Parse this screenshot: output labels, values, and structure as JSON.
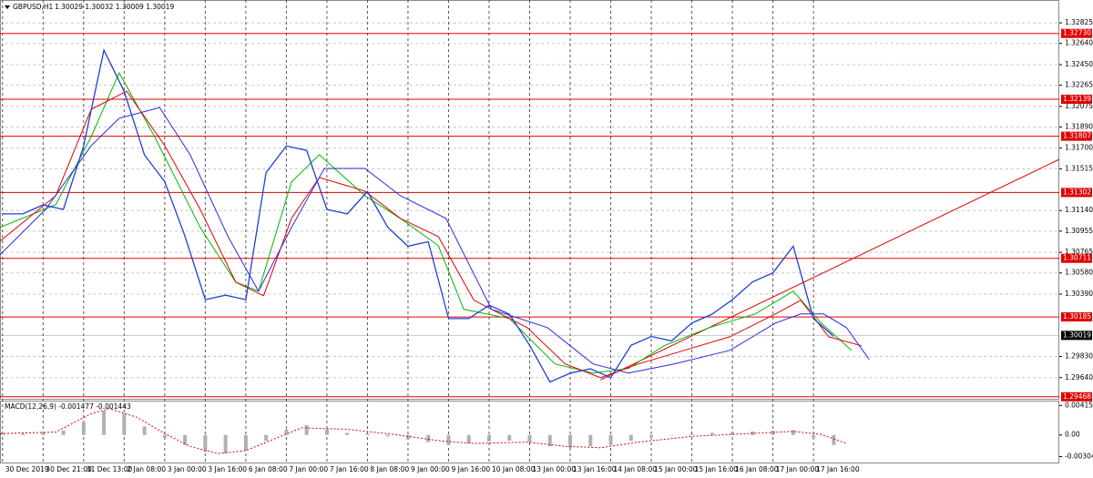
{
  "chart_data": {
    "type": "price",
    "title": "GBPUSD,H1",
    "ohlc_label": "1.30029 1.30032 1.30009 1.30019",
    "xlim": [
      -1,
      417
    ],
    "xticks": [
      {
        "value": 0,
        "label": "30 Dec 2019"
      },
      {
        "value": 16,
        "label": "30 Dec 21:00"
      },
      {
        "value": 32,
        "label": "31 Dec 13:00"
      },
      {
        "value": 48,
        "label": "2 Jan 08:00"
      },
      {
        "value": 64,
        "label": "3 Jan 00:00"
      },
      {
        "value": 80,
        "label": "3 Jan 16:00"
      },
      {
        "value": 96,
        "label": "6 Jan 08:00"
      },
      {
        "value": 112,
        "label": "7 Jan 00:00"
      },
      {
        "value": 128,
        "label": "7 Jan 16:00"
      },
      {
        "value": 144,
        "label": "8 Jan 08:00"
      },
      {
        "value": 160,
        "label": "9 Jan 00:00"
      },
      {
        "value": 176,
        "label": "9 Jan 16:00"
      },
      {
        "value": 192,
        "label": "10 Jan 08:00"
      },
      {
        "value": 208,
        "label": "13 Jan 00:00"
      },
      {
        "value": 224,
        "label": "13 Jan 16:00"
      },
      {
        "value": 240,
        "label": "14 Jan 08:00"
      },
      {
        "value": 256,
        "label": "15 Jan 00:00"
      },
      {
        "value": 272,
        "label": "15 Jan 16:00"
      },
      {
        "value": 288,
        "label": "16 Jan 08:00"
      },
      {
        "value": 304,
        "label": "17 Jan 00:00"
      },
      {
        "value": 320,
        "label": "17 Jan 16:00"
      }
    ],
    "ylim": [
      1.2945,
      1.3303
    ],
    "yticks": [
      1.32825,
      {
        "value": 1.3264,
        "label": "1.32640"
      },
      {
        "value": 1.3245,
        "label": "1.32450"
      },
      1.32265,
      1.32075,
      {
        "value": 1.3189,
        "label": "1.31890"
      },
      {
        "value": 1.317,
        "label": "1.31700"
      },
      1.31515,
      {
        "value": 1.3114,
        "label": "1.31140"
      },
      1.30955,
      1.30765,
      {
        "value": 1.3058,
        "label": "1.30580"
      },
      {
        "value": 1.3039,
        "label": "1.30390"
      },
      {
        "value": 1.2983,
        "label": "1.29830"
      },
      {
        "value": 1.2964,
        "label": "1.29640"
      }
    ],
    "grid": true,
    "price": {
      "color": "#1f3fd6",
      "x": [
        0,
        8,
        16,
        24,
        32,
        40,
        48,
        56,
        64,
        72,
        80,
        88,
        96,
        104,
        112,
        120,
        128,
        136,
        144,
        152,
        160,
        168,
        176,
        184,
        192,
        200,
        208,
        216,
        224,
        232,
        240,
        248,
        256,
        264,
        272,
        280,
        288,
        296,
        304,
        312,
        320,
        328
      ],
      "values": [
        1.3111,
        1.3111,
        1.3119,
        1.3115,
        1.3172,
        1.3258,
        1.3221,
        1.3164,
        1.314,
        1.3091,
        1.3034,
        1.3038,
        1.3034,
        1.3148,
        1.3172,
        1.3168,
        1.3115,
        1.3111,
        1.3131,
        1.3099,
        1.3082,
        1.3086,
        1.3017,
        1.3017,
        1.3029,
        1.3021,
        1.2993,
        1.296,
        1.2968,
        1.2972,
        1.2964,
        1.2993,
        1.3001,
        1.2997,
        1.3013,
        1.3021,
        1.3034,
        1.305,
        1.3058,
        1.3082,
        1.3017,
        1.3001
      ]
    },
    "moving_averages": [
      {
        "color": "#00b800",
        "x": [
          -1,
          21,
          35,
          46,
          60,
          78,
          92,
          101,
          114,
          125,
          143,
          157,
          172,
          182,
          200,
          218,
          233,
          247,
          261,
          279,
          297,
          312,
          323,
          335
        ],
        "values": [
          1.30988,
          1.31192,
          1.31804,
          1.32376,
          1.31804,
          1.30988,
          1.30497,
          1.30416,
          1.31396,
          1.31641,
          1.31273,
          1.31069,
          1.30824,
          1.30253,
          1.30171,
          1.29763,
          1.29681,
          1.29722,
          1.29926,
          1.30089,
          1.30212,
          1.30416,
          1.3013,
          1.29885
        ]
      },
      {
        "color": "#e00000",
        "x": [
          -1,
          21,
          35,
          49,
          64,
          78,
          92,
          103,
          114,
          125,
          143,
          157,
          172,
          186,
          207,
          222,
          236,
          251,
          269,
          287,
          305,
          315,
          326,
          339
        ],
        "values": [
          1.30865,
          1.31273,
          1.32049,
          1.32212,
          1.31723,
          1.31151,
          1.30497,
          1.30375,
          1.31069,
          1.31437,
          1.31314,
          1.31069,
          1.30906,
          1.30334,
          1.30089,
          1.29763,
          1.2964,
          1.29763,
          1.29885,
          1.30007,
          1.30212,
          1.30334,
          1.30007,
          1.29926
        ]
      },
      {
        "color": "#2a2ae0",
        "x": [
          -1,
          17,
          35,
          46,
          62,
          74,
          89,
          101,
          114,
          127,
          143,
          157,
          175,
          193,
          215,
          233,
          247,
          265,
          287,
          305,
          315,
          324,
          333,
          342
        ],
        "values": [
          1.30743,
          1.31151,
          1.31723,
          1.31968,
          1.32065,
          1.31641,
          1.30906,
          1.30416,
          1.30988,
          1.31518,
          1.31518,
          1.31273,
          1.31069,
          1.30253,
          1.30089,
          1.29763,
          1.29681,
          1.29763,
          1.29885,
          1.3013,
          1.30212,
          1.30212,
          1.30089,
          1.29803
        ]
      }
    ],
    "levels": [
      {
        "value": 1.3273,
        "label": "1.32730"
      },
      1.32139,
      1.31807,
      1.31302,
      1.30711,
      1.30185,
      1.29468
    ],
    "level_color": "#e00000",
    "current_price": 1.30019,
    "trendline": {
      "color": "#e00000",
      "x": [
        236,
        417
      ],
      "values": [
        1.2962,
        1.316
      ]
    },
    "macd": {
      "label": "MACD(12,26,9) -0.001477 -0.001443",
      "ylim": [
        -0.004,
        0.0047
      ],
      "yticks": [
        0.004154,
        {
          "value": 0,
          "label": "0.00"
        },
        -0.003041
      ],
      "histogram_color": "#b0b0b0",
      "histogram": [
        0.0002,
        0.0002,
        0.0003,
        0.0006,
        0.0018,
        0.0034,
        0.003,
        0.0012,
        -0.0004,
        -0.0014,
        -0.0024,
        -0.0026,
        -0.0022,
        -0.0008,
        0.0008,
        0.0014,
        0.0008,
        0.0003,
        0.0002,
        -0.0002,
        -0.0006,
        -0.001,
        -0.0014,
        -0.0012,
        -0.0009,
        -0.0008,
        -0.001,
        -0.0016,
        -0.0018,
        -0.0016,
        -0.0014,
        -0.0008,
        -0.0003,
        0,
        0.0002,
        0.0003,
        0.0004,
        0.0005,
        0.0006,
        0.0007,
        -0.0004,
        -0.0014
      ],
      "signal_color": "#e00000",
      "signal_x": [
        -1,
        21,
        35,
        42,
        53,
        64,
        74,
        85,
        96,
        107,
        118,
        136,
        154,
        172,
        186,
        207,
        222,
        236,
        251,
        272,
        294,
        312,
        323,
        333
      ],
      "signal": [
        0.0002,
        0.0004,
        0.003,
        0.0037,
        0.0025,
        0.0002,
        -0.0016,
        -0.0026,
        -0.0022,
        -0.0006,
        0.001,
        0.0008,
        0.0001,
        -0.0008,
        -0.0012,
        -0.001,
        -0.0016,
        -0.0018,
        -0.001,
        -0.0002,
        0.0002,
        0.0005,
        0.0001,
        -0.0012
      ]
    }
  }
}
